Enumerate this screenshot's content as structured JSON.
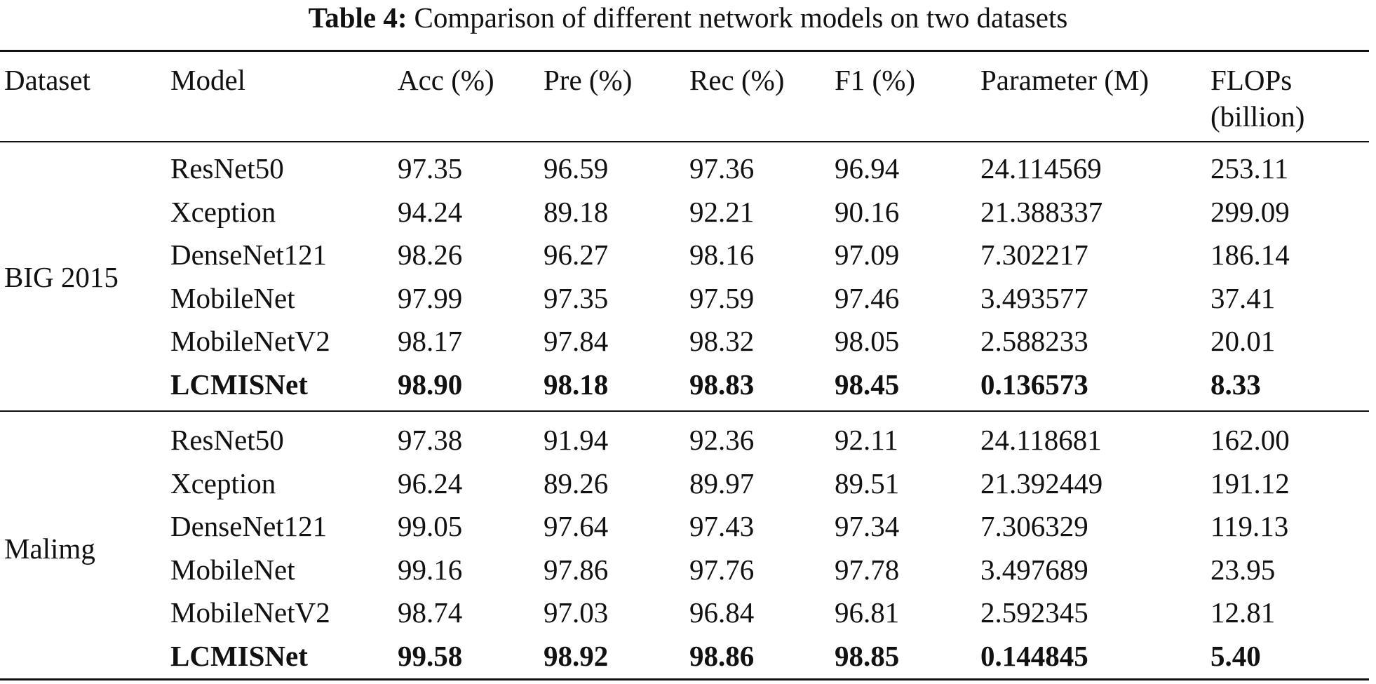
{
  "caption": {
    "label": "Table 4:",
    "text": "Comparison of different network models on two datasets"
  },
  "columns": [
    "Dataset",
    "Model",
    "Acc (%)",
    "Pre (%)",
    "Rec (%)",
    "F1 (%)",
    "Parameter (M)",
    "FLOPs",
    "(billion)"
  ],
  "groups": [
    {
      "dataset": "BIG 2015",
      "rows": [
        {
          "model": "ResNet50",
          "acc": "97.35",
          "pre": "96.59",
          "rec": "97.36",
          "f1": "96.94",
          "param": "24.114569",
          "flops": "253.11"
        },
        {
          "model": "Xception",
          "acc": "94.24",
          "pre": "89.18",
          "rec": "92.21",
          "f1": "90.16",
          "param": "21.388337",
          "flops": "299.09"
        },
        {
          "model": "DenseNet121",
          "acc": "98.26",
          "pre": "96.27",
          "rec": "98.16",
          "f1": "97.09",
          "param": "7.302217",
          "flops": "186.14"
        },
        {
          "model": "MobileNet",
          "acc": "97.99",
          "pre": "97.35",
          "rec": "97.59",
          "f1": "97.46",
          "param": "3.493577",
          "flops": "37.41"
        },
        {
          "model": "MobileNetV2",
          "acc": "98.17",
          "pre": "97.84",
          "rec": "98.32",
          "f1": "98.05",
          "param": "2.588233",
          "flops": "20.01"
        },
        {
          "model": "LCMISNet",
          "acc": "98.90",
          "pre": "98.18",
          "rec": "98.83",
          "f1": "98.45",
          "param": "0.136573",
          "flops": "8.33"
        }
      ]
    },
    {
      "dataset": "Malimg",
      "rows": [
        {
          "model": "ResNet50",
          "acc": "97.38",
          "pre": "91.94",
          "rec": "92.36",
          "f1": "92.11",
          "param": "24.118681",
          "flops": "162.00"
        },
        {
          "model": "Xception",
          "acc": "96.24",
          "pre": "89.26",
          "rec": "89.97",
          "f1": "89.51",
          "param": "21.392449",
          "flops": "191.12"
        },
        {
          "model": "DenseNet121",
          "acc": "99.05",
          "pre": "97.64",
          "rec": "97.43",
          "f1": "97.34",
          "param": "7.306329",
          "flops": "119.13"
        },
        {
          "model": "MobileNet",
          "acc": "99.16",
          "pre": "97.86",
          "rec": "97.76",
          "f1": "97.78",
          "param": "3.497689",
          "flops": "23.95"
        },
        {
          "model": "MobileNetV2",
          "acc": "98.74",
          "pre": "97.03",
          "rec": "96.84",
          "f1": "96.81",
          "param": "2.592345",
          "flops": "12.81"
        },
        {
          "model": "LCMISNet",
          "acc": "99.58",
          "pre": "98.92",
          "rec": "98.86",
          "f1": "98.85",
          "param": "0.144845",
          "flops": "5.40"
        }
      ]
    }
  ]
}
